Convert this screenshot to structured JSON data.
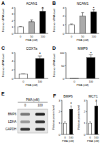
{
  "chart_data": [
    {
      "panel": "A",
      "title": "ACAN1",
      "type": "bar",
      "ylabel": "Relative mRNA level",
      "xlabel": "PMA (nM)",
      "categories": [
        "0",
        "50",
        "100"
      ],
      "values": [
        1,
        1.8,
        3.4
      ],
      "errors": [
        0.1,
        0.3,
        0.5
      ],
      "colors": [
        "#ffffff",
        "#aaaaaa",
        "#000000"
      ],
      "ylim": [
        0,
        4
      ],
      "yticks": [
        0,
        1,
        2,
        3,
        4
      ],
      "annotations": [
        null,
        null,
        "*"
      ]
    },
    {
      "panel": "B",
      "title": "NCAM1",
      "type": "bar",
      "ylabel": "Relative mRNA level",
      "xlabel": "PMA (nM)",
      "categories": [
        "0",
        "50",
        "100"
      ],
      "values": [
        1,
        2,
        2.5
      ],
      "errors": [
        0.1,
        0.4,
        0.3
      ],
      "colors": [
        "#ffffff",
        "#aaaaaa",
        "#000000"
      ],
      "ylim": [
        0,
        3
      ],
      "yticks": [
        0,
        1,
        2,
        3
      ],
      "annotations": [
        null,
        null,
        "*"
      ]
    },
    {
      "panel": "C",
      "title": "COX7a",
      "type": "bar",
      "ylabel": "Relative mRNA level",
      "xlabel": "PMA (nM)",
      "categories": [
        "0",
        "100"
      ],
      "values": [
        1,
        4.6
      ],
      "errors": [
        0.1,
        0.6
      ],
      "colors": [
        "#ffffff",
        "#000000"
      ],
      "ylim": [
        0,
        6
      ],
      "yticks": [
        0,
        2,
        4,
        6
      ],
      "annotations": [
        null,
        "*"
      ]
    },
    {
      "panel": "D",
      "title": "MMP9",
      "type": "bar",
      "ylabel": "Relative mRNA level",
      "xlabel": "PMA (nM)",
      "categories": [
        "0",
        "100"
      ],
      "values": [
        1,
        80
      ],
      "errors": [
        0.2,
        12
      ],
      "colors": [
        "#ffffff",
        "#000000"
      ],
      "ylim": [
        0,
        100
      ],
      "yticks": [
        0,
        50,
        100
      ],
      "annotations": [
        null,
        "*"
      ]
    },
    {
      "panel": "F",
      "title": "BMP6",
      "type": "bar",
      "ylabel": "Relative protein level",
      "xlabel": "PMA (nM)",
      "categories": [
        "0",
        "100"
      ],
      "values": [
        1,
        2.2
      ],
      "errors": [
        0.1,
        0.3
      ],
      "colors": [
        "#ffffff",
        "#000000"
      ],
      "ylim": [
        0,
        3
      ],
      "yticks": [
        0,
        1,
        2,
        3
      ],
      "annotations": [
        null,
        "*"
      ]
    },
    {
      "title": "MCT1",
      "type": "bar",
      "ylabel": "Relative protein level",
      "xlabel": "PMA (nM)",
      "categories": [
        "0",
        "100"
      ],
      "values": [
        1,
        2.5
      ],
      "errors": [
        0.1,
        0.4
      ],
      "colors": [
        "#ffffff",
        "#000000"
      ],
      "ylim": [
        0,
        3
      ],
      "yticks": [
        0,
        1,
        2,
        3
      ],
      "annotations": [
        null,
        "*"
      ]
    }
  ],
  "blot": {
    "panel": "E",
    "treatment": "PMA (nM)",
    "lanes": [
      "0",
      "100"
    ],
    "rows": [
      "BMP6",
      "LDHA",
      "GAPDH"
    ]
  }
}
